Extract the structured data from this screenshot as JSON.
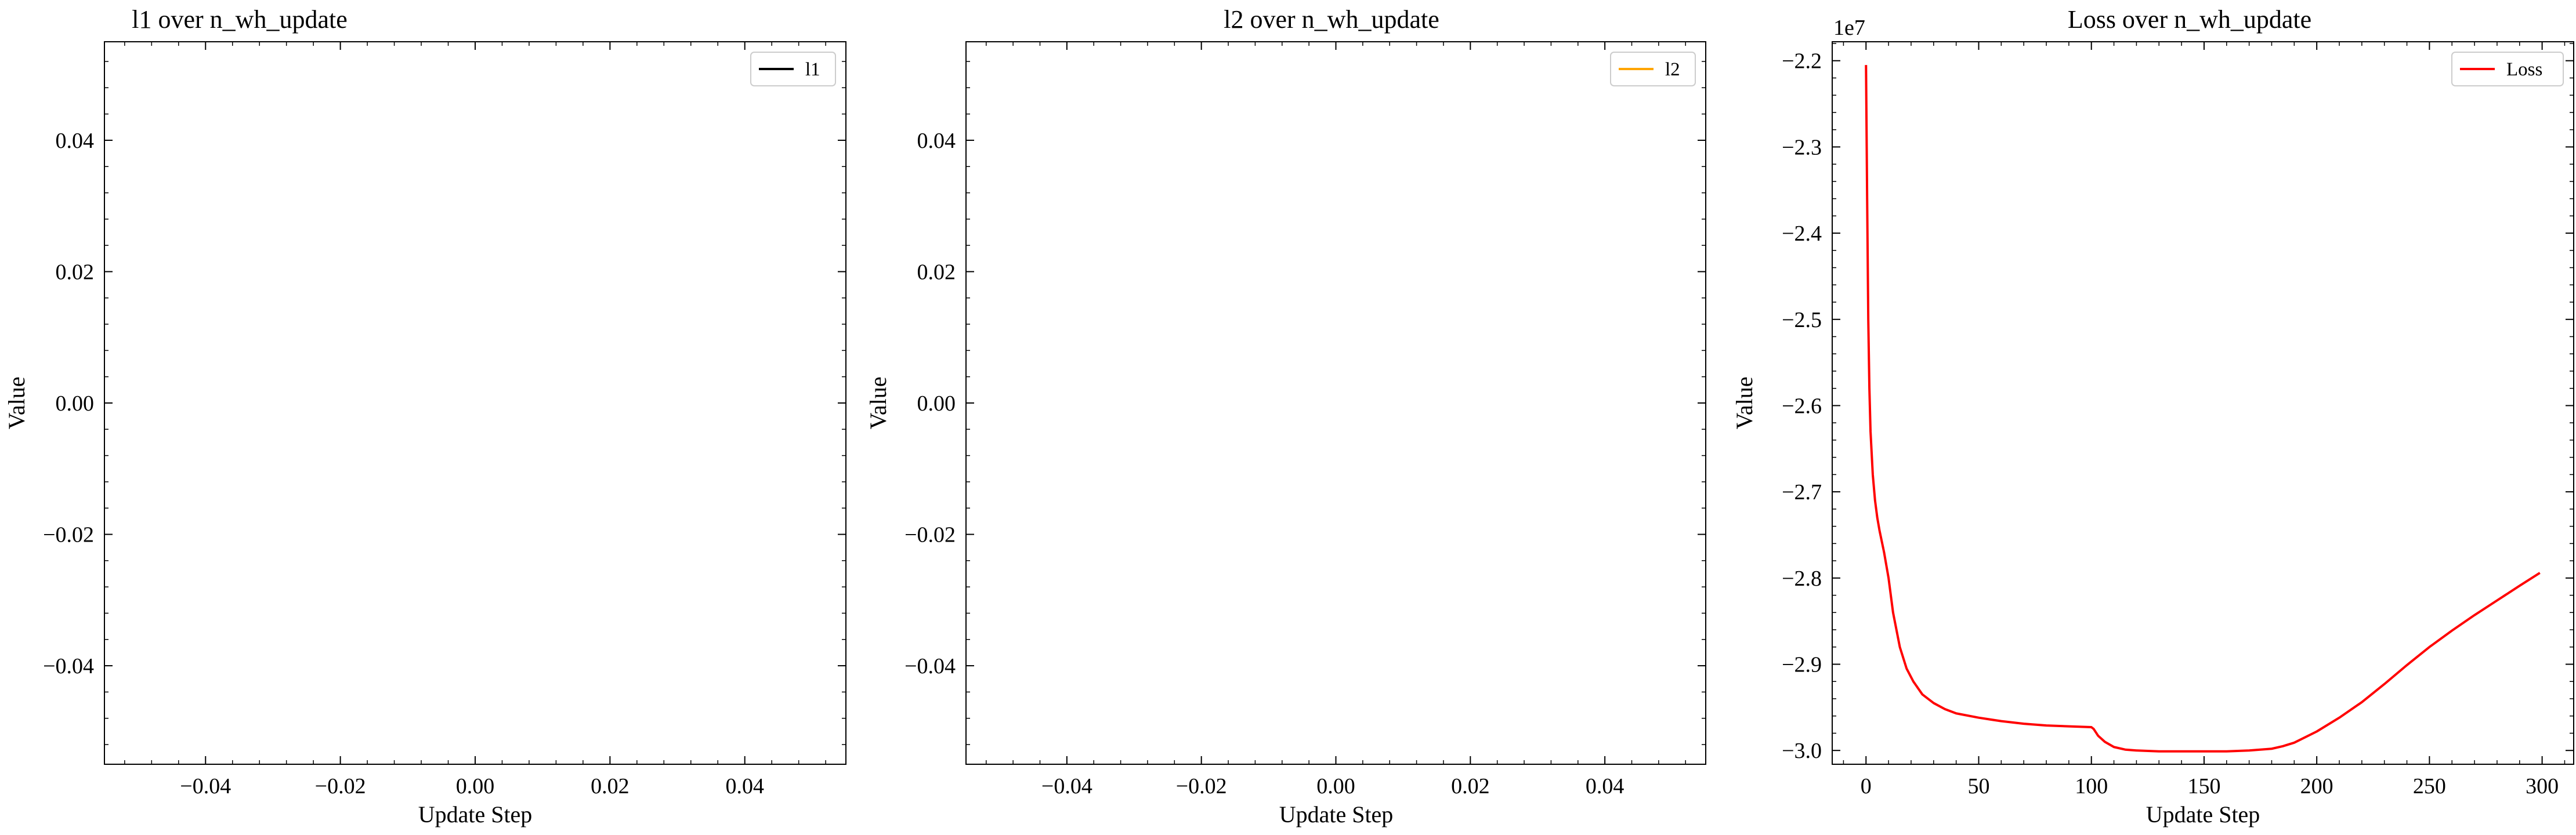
{
  "chart_data": [
    {
      "type": "line",
      "title": "l1 over n_wh_update",
      "xlabel": "Update Step",
      "ylabel": "Value",
      "xlim": [
        -0.055,
        0.055
      ],
      "ylim": [
        -0.055,
        0.055
      ],
      "xticks": [
        -0.04,
        -0.02,
        0.0,
        0.02,
        0.04
      ],
      "xtick_labels": [
        "−0.04",
        "−0.02",
        "0.00",
        "0.02",
        "0.04"
      ],
      "yticks": [
        -0.04,
        -0.02,
        0.0,
        0.02,
        0.04
      ],
      "ytick_labels": [
        "−0.04",
        "−0.02",
        "0.00",
        "0.02",
        "0.04"
      ],
      "grid": false,
      "legend": "upper right",
      "series": [
        {
          "name": "l1",
          "color": "#000000",
          "x": [],
          "y": []
        }
      ]
    },
    {
      "type": "line",
      "title": "l2 over n_wh_update",
      "xlabel": "Update Step",
      "ylabel": "Value",
      "xlim": [
        -0.055,
        0.055
      ],
      "ylim": [
        -0.055,
        0.055
      ],
      "xticks": [
        -0.04,
        -0.02,
        0.0,
        0.02,
        0.04
      ],
      "xtick_labels": [
        "−0.04",
        "−0.02",
        "0.00",
        "0.02",
        "0.04"
      ],
      "yticks": [
        -0.04,
        -0.02,
        0.0,
        0.02,
        0.04
      ],
      "ytick_labels": [
        "−0.04",
        "−0.02",
        "0.00",
        "0.02",
        "0.04"
      ],
      "grid": false,
      "legend": "upper right",
      "series": [
        {
          "name": "l2",
          "color": "#ffa500",
          "x": [],
          "y": []
        }
      ]
    },
    {
      "type": "line",
      "title": "Loss over n_wh_update",
      "xlabel": "Update Step",
      "ylabel": "Value",
      "offset_label": "1e7",
      "xlim": [
        -15,
        314
      ],
      "ylim": [
        -3.016,
        -2.178
      ],
      "xticks": [
        0,
        50,
        100,
        150,
        200,
        250,
        300
      ],
      "xtick_labels": [
        "0",
        "50",
        "100",
        "150",
        "200",
        "250",
        "300"
      ],
      "yticks": [
        -3.0,
        -2.9,
        -2.8,
        -2.7,
        -2.6,
        -2.5,
        -2.4,
        -2.3,
        -2.2
      ],
      "ytick_labels": [
        "−3.0",
        "−2.9",
        "−2.8",
        "−2.7",
        "−2.6",
        "−2.5",
        "−2.4",
        "−2.3",
        "−2.2"
      ],
      "grid": false,
      "legend": "upper right",
      "series": [
        {
          "name": "Loss",
          "color": "#ff0000",
          "x": [
            0,
            0.5,
            1,
            1.5,
            2,
            3,
            4,
            5,
            6,
            8,
            10,
            12,
            15,
            18,
            21,
            25,
            30,
            35,
            40,
            50,
            60,
            70,
            80,
            90,
            100,
            101,
            103,
            106,
            110,
            115,
            120,
            130,
            140,
            150,
            160,
            170,
            180,
            185,
            190,
            200,
            210,
            220,
            230,
            240,
            250,
            260,
            270,
            280,
            290,
            299
          ],
          "y": [
            -2.205,
            -2.36,
            -2.5,
            -2.58,
            -2.63,
            -2.68,
            -2.71,
            -2.73,
            -2.745,
            -2.77,
            -2.8,
            -2.84,
            -2.88,
            -2.905,
            -2.92,
            -2.935,
            -2.945,
            -2.952,
            -2.957,
            -2.962,
            -2.966,
            -2.969,
            -2.971,
            -2.972,
            -2.973,
            -2.975,
            -2.983,
            -2.99,
            -2.996,
            -2.999,
            -3.0,
            -3.001,
            -3.001,
            -3.001,
            -3.001,
            -3.0,
            -2.998,
            -2.995,
            -2.991,
            -2.978,
            -2.962,
            -2.944,
            -2.923,
            -2.901,
            -2.88,
            -2.861,
            -2.843,
            -2.826,
            -2.809,
            -2.794
          ]
        }
      ]
    }
  ]
}
